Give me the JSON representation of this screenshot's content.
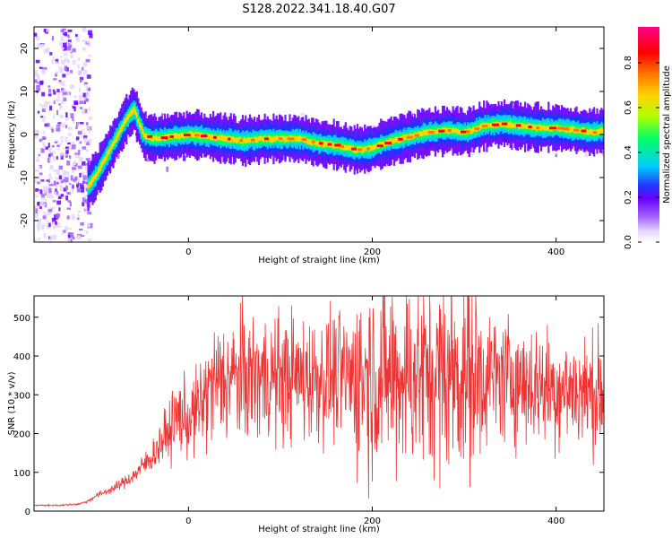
{
  "title": "S128.2022.341.18.40.G07",
  "colors": {
    "snr_line": "#ee3333",
    "colormap": [
      "#ffffff",
      "#e6d6ff",
      "#a060ff",
      "#6a00ff",
      "#2233ff",
      "#00ccff",
      "#00ff66",
      "#aaff00",
      "#ffd400",
      "#ff7700",
      "#ff0000",
      "#ff0088"
    ]
  },
  "chart_data": [
    {
      "type": "heatmap",
      "xlabel": "Height of straight line (km)",
      "ylabel": "Frequency (Hz)",
      "xlim": [
        -168,
        452
      ],
      "ylim": [
        -25,
        25
      ],
      "x_ticks": [
        0,
        200,
        400
      ],
      "y_ticks": [
        -20,
        -10,
        0,
        10,
        20
      ],
      "colorbar": {
        "label": "Normalized spectral amplitude",
        "range": [
          0.0,
          0.96
        ],
        "ticks": [
          0.0,
          0.2,
          0.4,
          0.6,
          0.8
        ]
      },
      "ridge": {
        "x": [
          -110,
          -100,
          -90,
          -80,
          -70,
          -60,
          -50,
          -40,
          -20,
          0,
          20,
          40,
          60,
          80,
          100,
          120,
          140,
          160,
          180,
          190,
          200,
          220,
          240,
          260,
          280,
          300,
          320,
          340,
          360,
          380,
          400,
          420,
          440,
          452
        ],
        "y": [
          -12,
          -9,
          -5,
          -1,
          3,
          6,
          0,
          -1,
          -0.5,
          0,
          -0.5,
          -1,
          -1.5,
          -1,
          -1,
          -1,
          -2,
          -2.5,
          -3.5,
          -3.5,
          -3,
          -1.5,
          -0.5,
          0.5,
          1,
          0.5,
          2,
          2.5,
          2,
          1.5,
          1.5,
          1,
          0.5,
          1
        ]
      }
    },
    {
      "type": "line",
      "series": [
        {
          "x": [
            -168,
            -140,
            -120,
            -110,
            -100,
            -80,
            -60,
            -40,
            -20,
            -10,
            0,
            10,
            20,
            30,
            50,
            100,
            150,
            200,
            250,
            300,
            350,
            400,
            452
          ],
          "y": [
            15,
            15,
            18,
            25,
            40,
            60,
            90,
            140,
            210,
            250,
            230,
            260,
            300,
            330,
            345,
            345,
            345,
            350,
            355,
            355,
            340,
            315,
            305
          ]
        }
      ],
      "xlabel": "Height of straight line (km)",
      "ylabel": "SNR (10 * v/v)",
      "xlim": [
        -168,
        452
      ],
      "ylim": [
        0,
        555
      ],
      "x_ticks": [
        0,
        200,
        400
      ],
      "y_ticks": [
        0,
        100,
        200,
        300,
        400,
        500
      ]
    }
  ]
}
